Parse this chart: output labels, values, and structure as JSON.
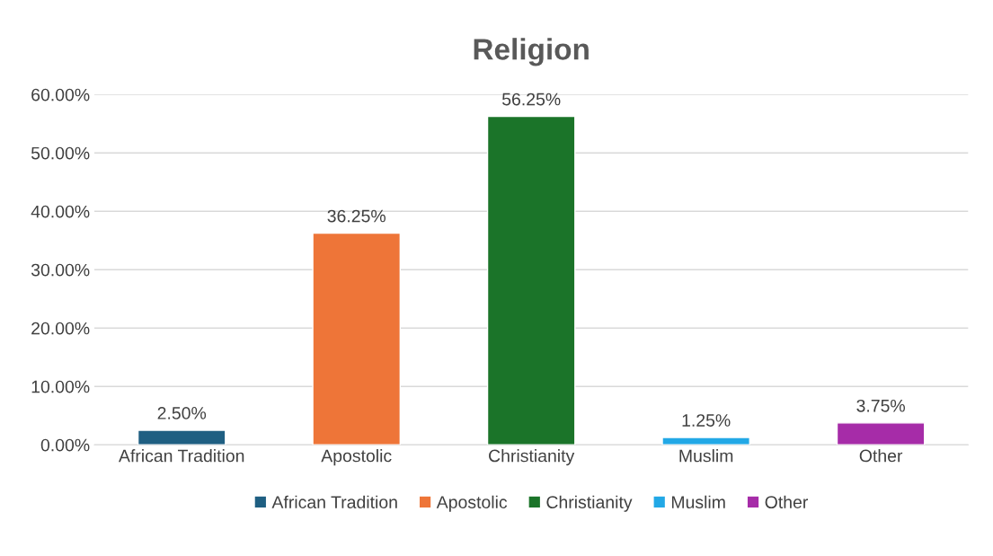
{
  "chart_data": {
    "type": "bar",
    "title": "Religion",
    "categories": [
      "African Tradition",
      "Apostolic",
      "Christianity",
      "Muslim",
      "Other"
    ],
    "series": [
      {
        "name": "African Tradition",
        "color": "#1f5f82",
        "values": [
          2.5,
          null,
          null,
          null,
          null
        ],
        "value_labels": [
          "2.50%",
          null,
          null,
          null,
          null
        ]
      },
      {
        "name": "Apostolic",
        "color": "#ee7538",
        "values": [
          null,
          36.25,
          null,
          null,
          null
        ],
        "value_labels": [
          null,
          "36.25%",
          null,
          null,
          null
        ]
      },
      {
        "name": "Christianity",
        "color": "#1b7429",
        "values": [
          null,
          null,
          56.25,
          null,
          null
        ],
        "value_labels": [
          null,
          null,
          "56.25%",
          null,
          null
        ]
      },
      {
        "name": "Muslim",
        "color": "#22a8e6",
        "values": [
          null,
          null,
          null,
          1.25,
          null
        ],
        "value_labels": [
          null,
          null,
          null,
          "1.25%",
          null
        ]
      },
      {
        "name": "Other",
        "color": "#a62ca8",
        "values": [
          null,
          null,
          null,
          null,
          3.75
        ],
        "value_labels": [
          null,
          null,
          null,
          null,
          "3.75%"
        ]
      }
    ],
    "ylim": [
      0,
      60
    ],
    "yticks": [
      {
        "value": 0,
        "label": "0.00%"
      },
      {
        "value": 10,
        "label": "10.00%"
      },
      {
        "value": 20,
        "label": "20.00%"
      },
      {
        "value": 30,
        "label": "30.00%"
      },
      {
        "value": 40,
        "label": "40.00%"
      },
      {
        "value": 50,
        "label": "50.00%"
      },
      {
        "value": 60,
        "label": "60.00%"
      }
    ],
    "grid": "y",
    "legend": "bottom"
  }
}
